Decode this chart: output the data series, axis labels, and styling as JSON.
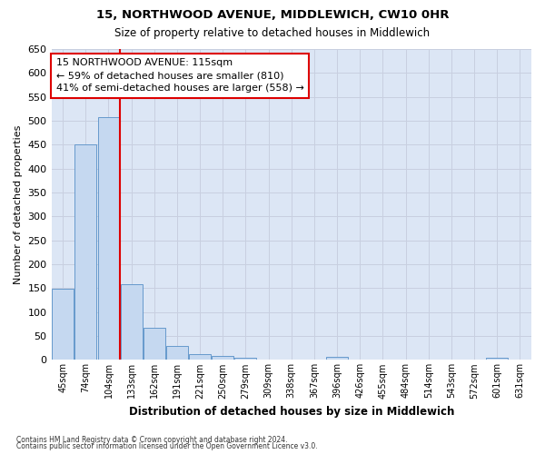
{
  "title": "15, NORTHWOOD AVENUE, MIDDLEWICH, CW10 0HR",
  "subtitle": "Size of property relative to detached houses in Middlewich",
  "xlabel": "Distribution of detached houses by size in Middlewich",
  "ylabel": "Number of detached properties",
  "footnote1": "Contains HM Land Registry data © Crown copyright and database right 2024.",
  "footnote2": "Contains public sector information licensed under the Open Government Licence v3.0.",
  "annotation_line1": "15 NORTHWOOD AVENUE: 115sqm",
  "annotation_line2": "← 59% of detached houses are smaller (810)",
  "annotation_line3": "41% of semi-detached houses are larger (558) →",
  "property_size_idx": 2,
  "bar_labels": [
    "45sqm",
    "74sqm",
    "104sqm",
    "133sqm",
    "162sqm",
    "191sqm",
    "221sqm",
    "250sqm",
    "279sqm",
    "309sqm",
    "338sqm",
    "367sqm",
    "396sqm",
    "426sqm",
    "455sqm",
    "484sqm",
    "514sqm",
    "543sqm",
    "572sqm",
    "601sqm",
    "631sqm"
  ],
  "bar_values": [
    148,
    450,
    507,
    158,
    68,
    30,
    13,
    8,
    4,
    0,
    0,
    0,
    6,
    0,
    0,
    0,
    0,
    0,
    0,
    5,
    0
  ],
  "bar_color": "#c5d8f0",
  "bar_edge_color": "#6699cc",
  "grid_color": "#c8cfe0",
  "bg_color": "#dce6f5",
  "vline_color": "#dd0000",
  "annotation_box_color": "#dd0000",
  "ylim": [
    0,
    650
  ],
  "yticks": [
    0,
    50,
    100,
    150,
    200,
    250,
    300,
    350,
    400,
    450,
    500,
    550,
    600,
    650
  ]
}
